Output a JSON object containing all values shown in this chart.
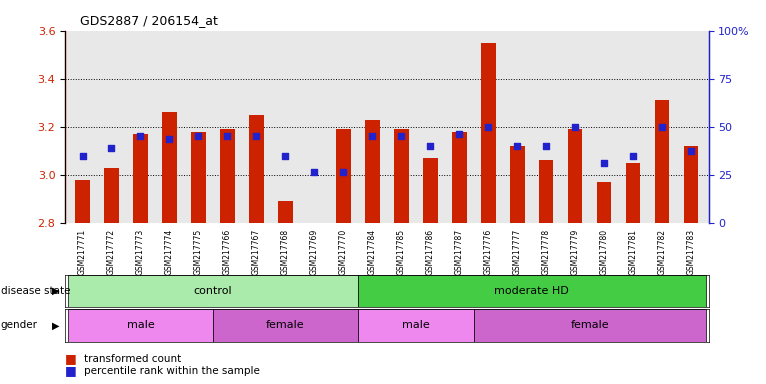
{
  "title": "GDS2887 / 206154_at",
  "samples": [
    "GSM217771",
    "GSM217772",
    "GSM217773",
    "GSM217774",
    "GSM217775",
    "GSM217766",
    "GSM217767",
    "GSM217768",
    "GSM217769",
    "GSM217770",
    "GSM217784",
    "GSM217785",
    "GSM217786",
    "GSM217787",
    "GSM217776",
    "GSM217777",
    "GSM217778",
    "GSM217779",
    "GSM217780",
    "GSM217781",
    "GSM217782",
    "GSM217783"
  ],
  "bar_values": [
    2.98,
    3.03,
    3.17,
    3.26,
    3.18,
    3.19,
    3.25,
    2.89,
    2.8,
    3.19,
    3.23,
    3.19,
    3.07,
    3.18,
    3.55,
    3.12,
    3.06,
    3.19,
    2.97,
    3.05,
    3.31,
    3.12
  ],
  "dot_values": [
    3.08,
    3.11,
    3.16,
    3.15,
    3.16,
    3.16,
    3.16,
    3.08,
    3.01,
    3.01,
    3.16,
    3.16,
    3.12,
    3.17,
    3.2,
    3.12,
    3.12,
    3.2,
    3.05,
    3.08,
    3.2,
    3.1
  ],
  "ylim": [
    2.8,
    3.6
  ],
  "yticks_left": [
    2.8,
    3.0,
    3.2,
    3.4,
    3.6
  ],
  "yticks_right_pct": [
    0,
    25,
    50,
    75,
    100
  ],
  "yticks_right_labels": [
    "0",
    "25",
    "50",
    "75",
    "100%"
  ],
  "bar_color": "#cc2200",
  "dot_color": "#2222cc",
  "background_color": "#e8e8e8",
  "disease_state_groups": [
    {
      "label": "control",
      "start": 0,
      "end": 10,
      "color": "#aaeaaa"
    },
    {
      "label": "moderate HD",
      "start": 10,
      "end": 22,
      "color": "#44cc44"
    }
  ],
  "gender_groups": [
    {
      "label": "male",
      "start": 0,
      "end": 5,
      "color": "#ee88ee"
    },
    {
      "label": "female",
      "start": 5,
      "end": 10,
      "color": "#cc66cc"
    },
    {
      "label": "male",
      "start": 10,
      "end": 14,
      "color": "#ee88ee"
    },
    {
      "label": "female",
      "start": 14,
      "end": 22,
      "color": "#cc66cc"
    }
  ],
  "legend_items": [
    {
      "label": "transformed count",
      "color": "#cc2200"
    },
    {
      "label": "percentile rank within the sample",
      "color": "#2222cc"
    }
  ]
}
